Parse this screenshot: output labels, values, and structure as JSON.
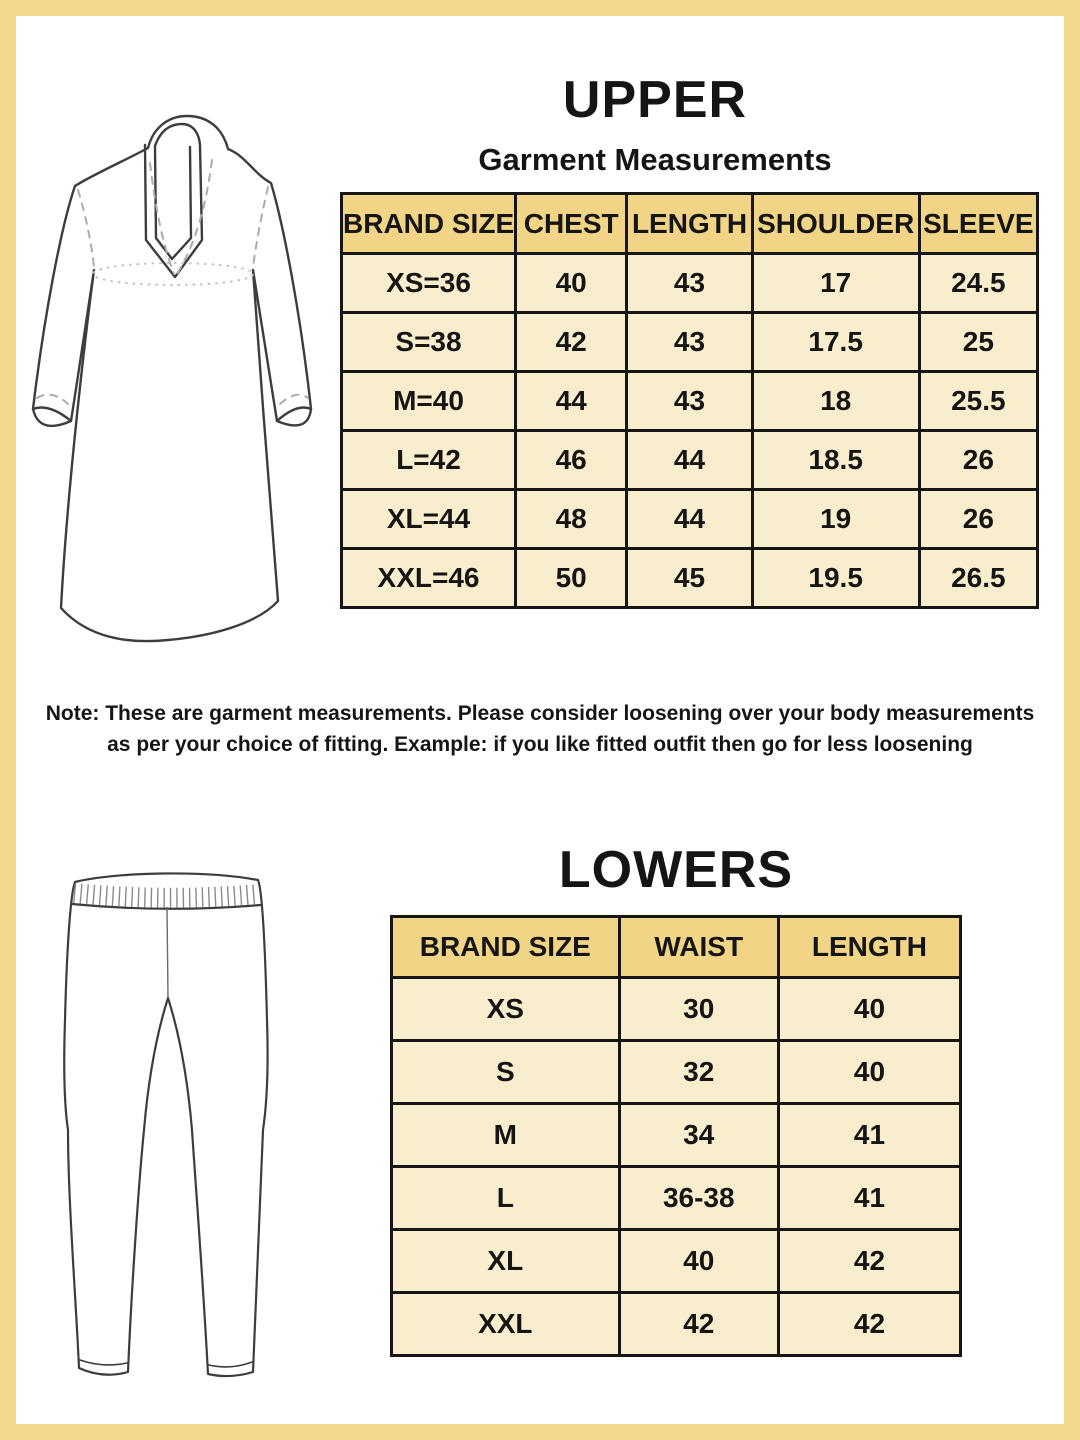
{
  "upper": {
    "title": "UPPER",
    "subtitle": "Garment Measurements",
    "table": {
      "headers": [
        "BRAND SIZE",
        "CHEST",
        "LENGTH",
        "SHOULDER",
        "SLEEVE"
      ],
      "rows": [
        [
          "XS=36",
          "40",
          "43",
          "17",
          "24.5"
        ],
        [
          "S=38",
          "42",
          "43",
          "17.5",
          "25"
        ],
        [
          "M=40",
          "44",
          "43",
          "18",
          "25.5"
        ],
        [
          "L=42",
          "46",
          "44",
          "18.5",
          "26"
        ],
        [
          "XL=44",
          "48",
          "44",
          "19",
          "26"
        ],
        [
          "XXL=46",
          "50",
          "45",
          "19.5",
          "26.5"
        ]
      ]
    },
    "note_line1": "Note: These are garment measurements. Please consider loosening over your body measurements",
    "note_line2": "as per your choice of fitting. Example: if you like fitted outfit then go for less loosening"
  },
  "lowers": {
    "title": "LOWERS",
    "table": {
      "headers": [
        "BRAND SIZE",
        "WAIST",
        "LENGTH"
      ],
      "rows": [
        [
          "XS",
          "30",
          "40"
        ],
        [
          "S",
          "32",
          "40"
        ],
        [
          "M",
          "34",
          "41"
        ],
        [
          "L",
          "36-38",
          "41"
        ],
        [
          "XL",
          "40",
          "42"
        ],
        [
          "XXL",
          "42",
          "42"
        ]
      ]
    }
  },
  "illustrations": {
    "upper": "kurta-outline-drawing",
    "lowers": "leggings-outline-drawing"
  },
  "colors": {
    "frame_gold": "#f2d88b",
    "header_gold": "#f2d486",
    "cell_cream": "#f8eecd",
    "text": "#151515",
    "background": "#ffffff"
  }
}
